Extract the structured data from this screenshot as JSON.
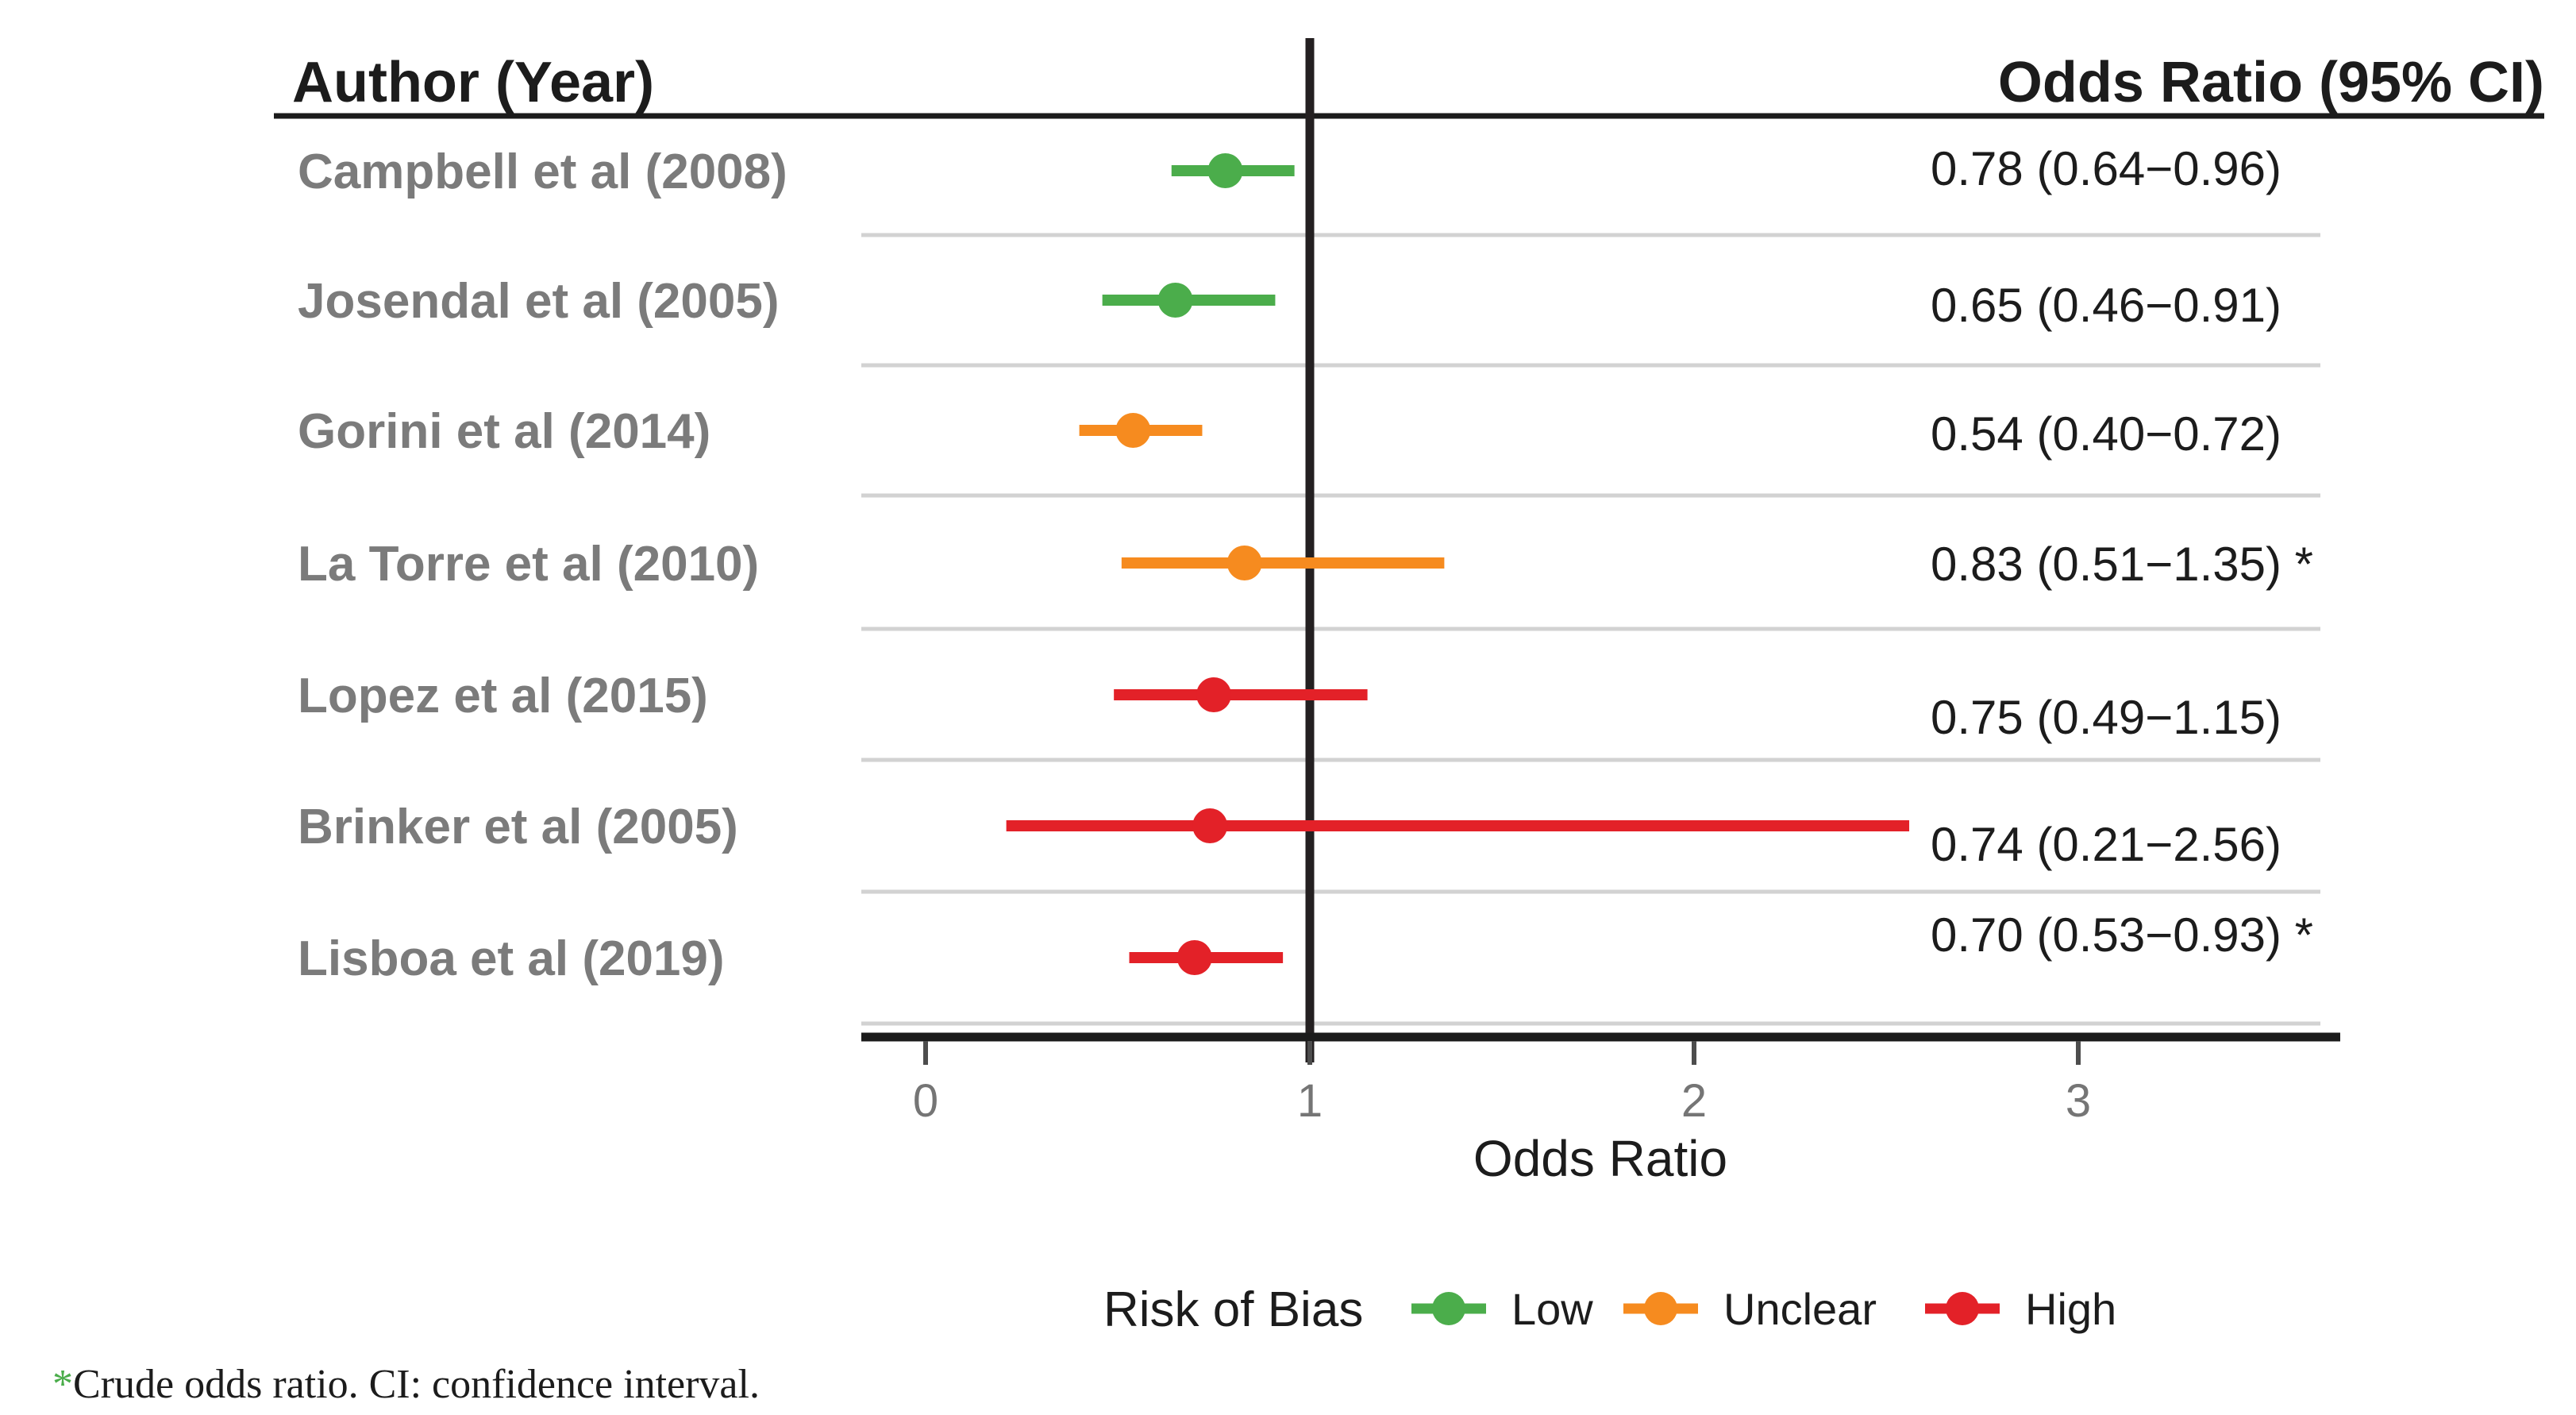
{
  "header": {
    "left": "Author (Year)",
    "right": "Odds Ratio (95% CI)"
  },
  "chart_data": {
    "type": "forest-plot",
    "title": "",
    "xlabel": "Odds Ratio",
    "x_axis": {
      "label": "Odds Ratio",
      "ticks": [
        "0",
        "1",
        "2",
        "3"
      ],
      "tick_values": [
        0,
        1,
        2,
        3
      ],
      "range_approx": [
        -0.17,
        3.68
      ],
      "reference_line": 1
    },
    "risk_colors": {
      "low": "#4bad4b",
      "unclear": "#f68b1f",
      "high": "#e32128"
    },
    "studies": [
      {
        "label": "Campbell et al (2008)",
        "or": 0.78,
        "ci_low": 0.64,
        "ci_high": 0.96,
        "risk": "low",
        "value_label": "0.78 (0.64−0.96)"
      },
      {
        "label": "Josendal et al (2005)",
        "or": 0.65,
        "ci_low": 0.46,
        "ci_high": 0.91,
        "risk": "low",
        "value_label": "0.65 (0.46−0.91)"
      },
      {
        "label": "Gorini et al (2014)",
        "or": 0.54,
        "ci_low": 0.4,
        "ci_high": 0.72,
        "risk": "unclear",
        "value_label": "0.54 (0.40−0.72)"
      },
      {
        "label": "La Torre et al (2010)",
        "or": 0.83,
        "ci_low": 0.51,
        "ci_high": 1.35,
        "risk": "unclear",
        "value_label": "0.83 (0.51−1.35) *"
      },
      {
        "label": "Lopez et al (2015)",
        "or": 0.75,
        "ci_low": 0.49,
        "ci_high": 1.15,
        "risk": "high",
        "value_label": "0.75 (0.49−1.15)"
      },
      {
        "label": "Brinker et al (2005)",
        "or": 0.74,
        "ci_low": 0.21,
        "ci_high": 2.56,
        "risk": "high",
        "value_label": "0.74 (0.21−2.56)"
      },
      {
        "label": "Lisboa et al (2019)",
        "or": 0.7,
        "ci_low": 0.53,
        "ci_high": 0.93,
        "risk": "high",
        "value_label": "0.70 (0.53−0.93) *"
      }
    ],
    "legend_position": "bottom",
    "grid": "row-separators-only"
  },
  "legend": {
    "title": "Risk of Bias",
    "items": [
      {
        "label": "Low",
        "risk": "low",
        "color": "#4bad4b"
      },
      {
        "label": "Unclear",
        "risk": "unclear",
        "color": "#f68b1f"
      },
      {
        "label": "High",
        "risk": "high",
        "color": "#e32128"
      }
    ]
  },
  "footnote": {
    "marker": "*",
    "text": "Crude odds ratio. CI: confidence interval."
  }
}
